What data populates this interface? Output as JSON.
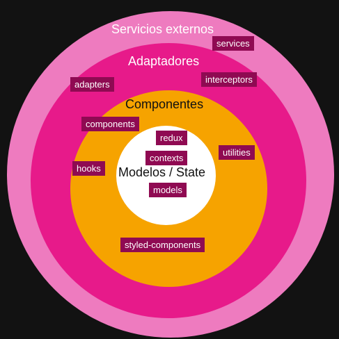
{
  "diagram": {
    "layers": {
      "external_services": {
        "title": "Servicios externos",
        "color": "#ee7bbf"
      },
      "adapters": {
        "title": "Adaptadores",
        "color": "#e71a8a"
      },
      "components": {
        "title": "Componentes",
        "color": "#f6a300"
      },
      "core": {
        "title": "Modelos / State",
        "color": "#ffffff"
      }
    },
    "tags": {
      "services": "services",
      "adapters": "adapters",
      "interceptors": "interceptors",
      "components": "components",
      "redux": "redux",
      "contexts": "contexts",
      "utilities": "utilities",
      "hooks": "hooks",
      "models": "models",
      "styled_components": "styled-components"
    },
    "tag_color": "#8f0a52",
    "background": "#121212"
  }
}
